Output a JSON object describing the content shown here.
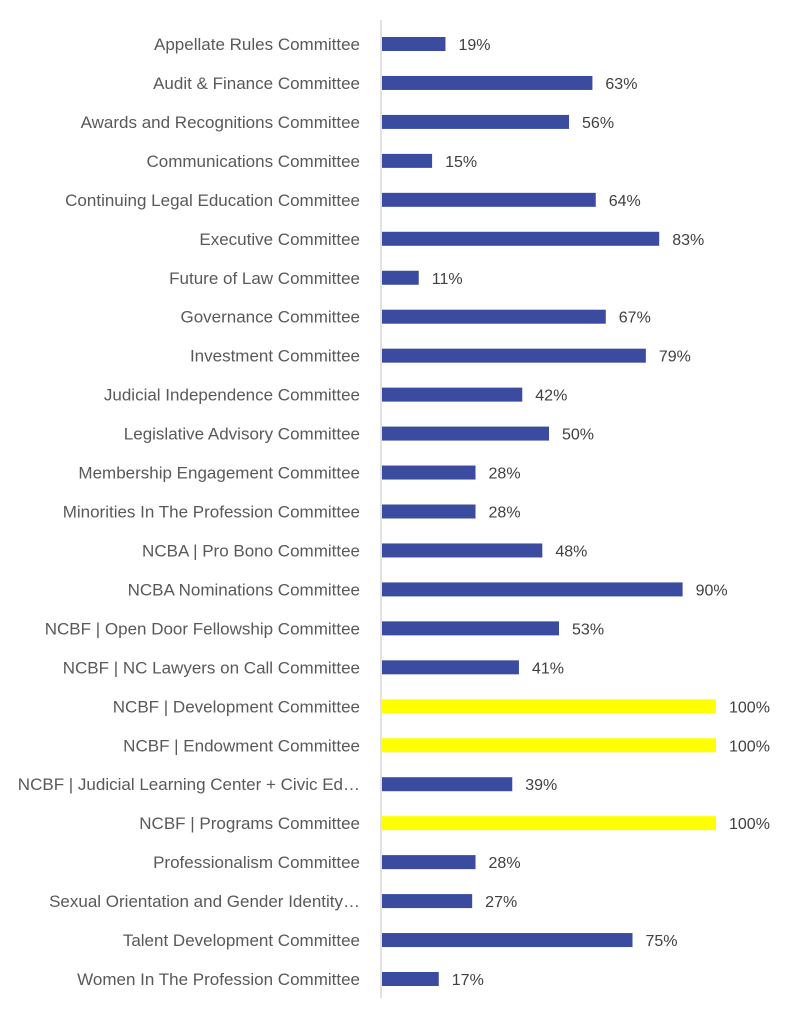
{
  "chart_data": {
    "type": "bar",
    "orientation": "horizontal",
    "title": "",
    "xlabel": "",
    "ylabel": "",
    "xlim": [
      0,
      100
    ],
    "grid": false,
    "value_format": "percent",
    "colors": {
      "default": "#3A4BA0",
      "highlight": "#FFFF00",
      "axis": "#D9D9D9"
    },
    "categories": [
      "Appellate Rules Committee",
      "Audit & Finance Committee",
      "Awards and Recognitions Committee",
      "Communications Committee",
      "Continuing Legal Education Committee",
      "Executive Committee",
      "Future of Law Committee",
      "Governance Committee",
      "Investment Committee",
      "Judicial Independence Committee",
      "Legislative Advisory Committee",
      "Membership Engagement Committee",
      "Minorities In The Profession Committee",
      "NCBA | Pro Bono Committee",
      "NCBA Nominations Committee",
      "NCBF | Open Door Fellowship Committee",
      "NCBF | NC Lawyers on Call Committee",
      "NCBF | Development Committee",
      "NCBF | Endowment Committee",
      "NCBF | Judicial Learning Center + Civic Ed…",
      "NCBF | Programs Committee",
      "Professionalism Committee",
      "Sexual Orientation and Gender Identity…",
      "Talent Development Committee",
      "Women In The Profession Committee"
    ],
    "values": [
      19,
      63,
      56,
      15,
      64,
      83,
      11,
      67,
      79,
      42,
      50,
      28,
      28,
      48,
      90,
      53,
      41,
      100,
      100,
      39,
      100,
      28,
      27,
      75,
      17
    ],
    "value_labels": [
      "19%",
      "63%",
      "56%",
      "15%",
      "64%",
      "83%",
      "11%",
      "67%",
      "79%",
      "42%",
      "50%",
      "28%",
      "28%",
      "48%",
      "90%",
      "53%",
      "41%",
      "100%",
      "100%",
      "39%",
      "100%",
      "28%",
      "27%",
      "75%",
      "17%"
    ],
    "highlighted": [
      false,
      false,
      false,
      false,
      false,
      false,
      false,
      false,
      false,
      false,
      false,
      false,
      false,
      false,
      false,
      false,
      false,
      true,
      true,
      false,
      true,
      false,
      false,
      false,
      false
    ]
  }
}
